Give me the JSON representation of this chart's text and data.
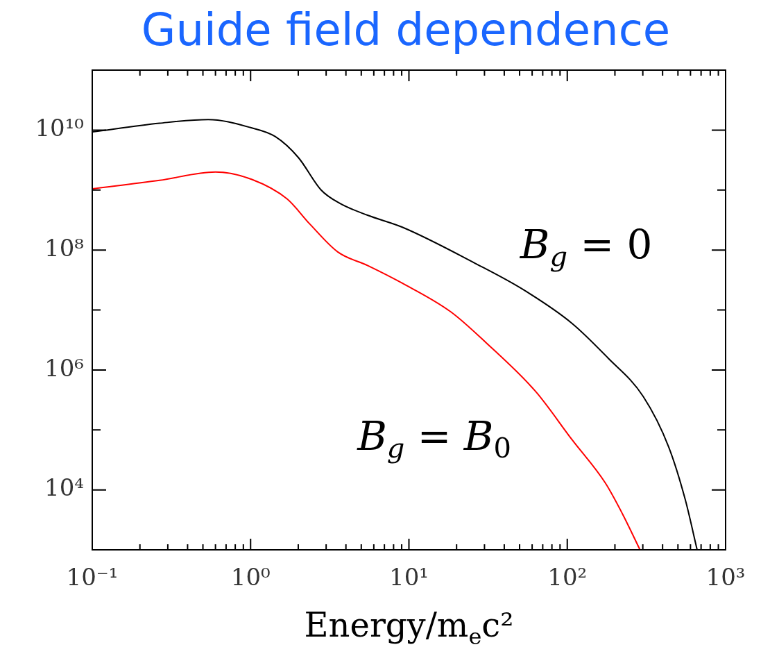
{
  "chart_data": {
    "type": "line",
    "title": "Guide field dependence",
    "xlabel": "Energy/m$_{e}$c²",
    "log": "xy",
    "legend": false,
    "grid": false,
    "marker": "none",
    "line_style": "solid",
    "xlim": [
      0.1,
      1000
    ],
    "ylim": [
      1000,
      100000000000
    ],
    "xticks": [
      {
        "value": 0.1,
        "label": "10⁻¹"
      },
      {
        "value": 0.2,
        "label": null
      },
      {
        "value": 0.3,
        "label": null
      },
      {
        "value": 0.4,
        "label": null
      },
      {
        "value": 0.5,
        "label": null
      },
      {
        "value": 0.6,
        "label": null
      },
      {
        "value": 0.7,
        "label": null
      },
      {
        "value": 0.8,
        "label": null
      },
      {
        "value": 0.9,
        "label": null
      },
      {
        "value": 1,
        "label": "10⁰"
      },
      {
        "value": 2,
        "label": null
      },
      {
        "value": 3,
        "label": null
      },
      {
        "value": 4,
        "label": null
      },
      {
        "value": 5,
        "label": null
      },
      {
        "value": 6,
        "label": null
      },
      {
        "value": 7,
        "label": null
      },
      {
        "value": 8,
        "label": null
      },
      {
        "value": 9,
        "label": null
      },
      {
        "value": 10,
        "label": "10¹"
      },
      {
        "value": 20,
        "label": null
      },
      {
        "value": 30,
        "label": null
      },
      {
        "value": 40,
        "label": null
      },
      {
        "value": 50,
        "label": null
      },
      {
        "value": 60,
        "label": null
      },
      {
        "value": 70,
        "label": null
      },
      {
        "value": 80,
        "label": null
      },
      {
        "value": 90,
        "label": null
      },
      {
        "value": 100,
        "label": "10²"
      },
      {
        "value": 200,
        "label": null
      },
      {
        "value": 300,
        "label": null
      },
      {
        "value": 400,
        "label": null
      },
      {
        "value": 500,
        "label": null
      },
      {
        "value": 600,
        "label": null
      },
      {
        "value": 700,
        "label": null
      },
      {
        "value": 800,
        "label": null
      },
      {
        "value": 900,
        "label": null
      },
      {
        "value": 1000,
        "label": "10³"
      }
    ],
    "yticks": [
      {
        "value": 1000,
        "label": null
      },
      {
        "value": 10000,
        "label": "10⁴"
      },
      {
        "value": 100000,
        "label": null
      },
      {
        "value": 1000000,
        "label": "10⁶"
      },
      {
        "value": 10000000,
        "label": null
      },
      {
        "value": 100000000,
        "label": "10⁸"
      },
      {
        "value": 1000000000,
        "label": null
      },
      {
        "value": 10000000000,
        "label": "10¹⁰"
      },
      {
        "value": 100000000000,
        "label": null
      }
    ],
    "series": [
      {
        "color": "#000000",
        "x": [
          0.1,
          0.266,
          0.54,
          1,
          1.43,
          2.0,
          2.79,
          3.66,
          5.48,
          9.08,
          26.2,
          52.5,
          107,
          180,
          302,
          437,
          556,
          661
        ],
        "values": [
          9300000000.0,
          13000000000.0,
          15000000000.0,
          11000000000.0,
          7800000000.0,
          3500000000.0,
          1000000000.0,
          600000000.0,
          380000000.0,
          240000000.0,
          60000000.0,
          22000000.0,
          6000000.0,
          1600000.0,
          360000.0,
          52000.0,
          6900.0,
          1000.0
        ]
      },
      {
        "color": "#ff0000",
        "x": [
          0.1,
          0.266,
          0.6,
          1.02,
          1.7,
          2.37,
          3.55,
          5.5,
          9.08,
          18.4,
          30.9,
          63,
          107,
          174,
          224,
          288
        ],
        "values": [
          1050000000.0,
          1450000000.0,
          2000000000.0,
          1500000000.0,
          710000000.0,
          270000000.0,
          93000000.0,
          55000000.0,
          28000000.0,
          9300000.0,
          2800000.0,
          440000.0,
          69000.0,
          13000.0,
          3900.0,
          1000.0
        ]
      }
    ],
    "annotations": [
      "B$_{g}$ = 0",
      "B$_{g}$ = B$_{0}$"
    ]
  }
}
